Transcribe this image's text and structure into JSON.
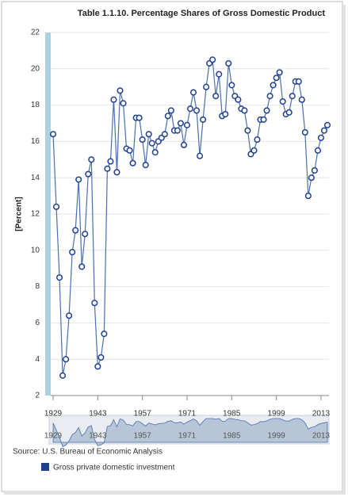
{
  "chart_data": {
    "type": "line",
    "title": "Table 1.1.10. Percentage Shares of Gross Domestic Product",
    "y_label": "[Percent]",
    "source": "Source: U.S. Bureau of Economic Analysis",
    "x": [
      1929,
      1930,
      1931,
      1932,
      1933,
      1934,
      1935,
      1936,
      1937,
      1938,
      1939,
      1940,
      1941,
      1942,
      1943,
      1944,
      1945,
      1946,
      1947,
      1948,
      1949,
      1950,
      1951,
      1952,
      1953,
      1954,
      1955,
      1956,
      1957,
      1958,
      1959,
      1960,
      1961,
      1962,
      1963,
      1964,
      1965,
      1966,
      1967,
      1968,
      1969,
      1970,
      1971,
      1972,
      1973,
      1974,
      1975,
      1976,
      1977,
      1978,
      1979,
      1980,
      1981,
      1982,
      1983,
      1984,
      1985,
      1986,
      1987,
      1988,
      1989,
      1990,
      1991,
      1992,
      1993,
      1994,
      1995,
      1996,
      1997,
      1998,
      1999,
      2000,
      2001,
      2002,
      2003,
      2004,
      2005,
      2006,
      2007,
      2008,
      2009,
      2010,
      2011,
      2012,
      2013,
      2014,
      2015
    ],
    "series": [
      {
        "name": "Gross private domestic investment",
        "color": "#1f3f8f",
        "values": [
          16.4,
          12.4,
          8.5,
          3.1,
          4.0,
          6.4,
          9.9,
          11.1,
          13.9,
          9.1,
          10.9,
          14.2,
          15.0,
          7.1,
          3.6,
          4.1,
          5.4,
          14.5,
          14.9,
          18.3,
          14.3,
          18.8,
          18.1,
          15.6,
          15.5,
          14.8,
          17.3,
          17.3,
          16.1,
          14.7,
          16.4,
          15.9,
          15.4,
          16.0,
          16.2,
          16.4,
          17.4,
          17.7,
          16.6,
          16.6,
          17.0,
          15.8,
          16.9,
          17.8,
          18.7,
          17.7,
          15.2,
          17.2,
          19.0,
          20.3,
          20.5,
          18.5,
          19.7,
          17.4,
          17.5,
          20.3,
          19.1,
          18.5,
          18.3,
          17.8,
          17.7,
          16.6,
          15.3,
          15.5,
          16.1,
          17.2,
          17.2,
          17.7,
          18.5,
          19.1,
          19.5,
          19.8,
          18.2,
          17.5,
          17.6,
          18.5,
          19.3,
          19.3,
          18.3,
          16.5,
          13.0,
          14.0,
          14.4,
          15.5,
          16.2,
          16.6,
          16.9
        ]
      }
    ],
    "xlim": [
      1929,
      2015
    ],
    "xticks": [
      1929,
      1943,
      1957,
      1971,
      1985,
      1999,
      2013
    ],
    "ylim": [
      2,
      22
    ],
    "yticks": [
      2,
      4,
      6,
      8,
      10,
      12,
      14,
      16,
      18,
      20,
      22
    ],
    "grid": true
  }
}
